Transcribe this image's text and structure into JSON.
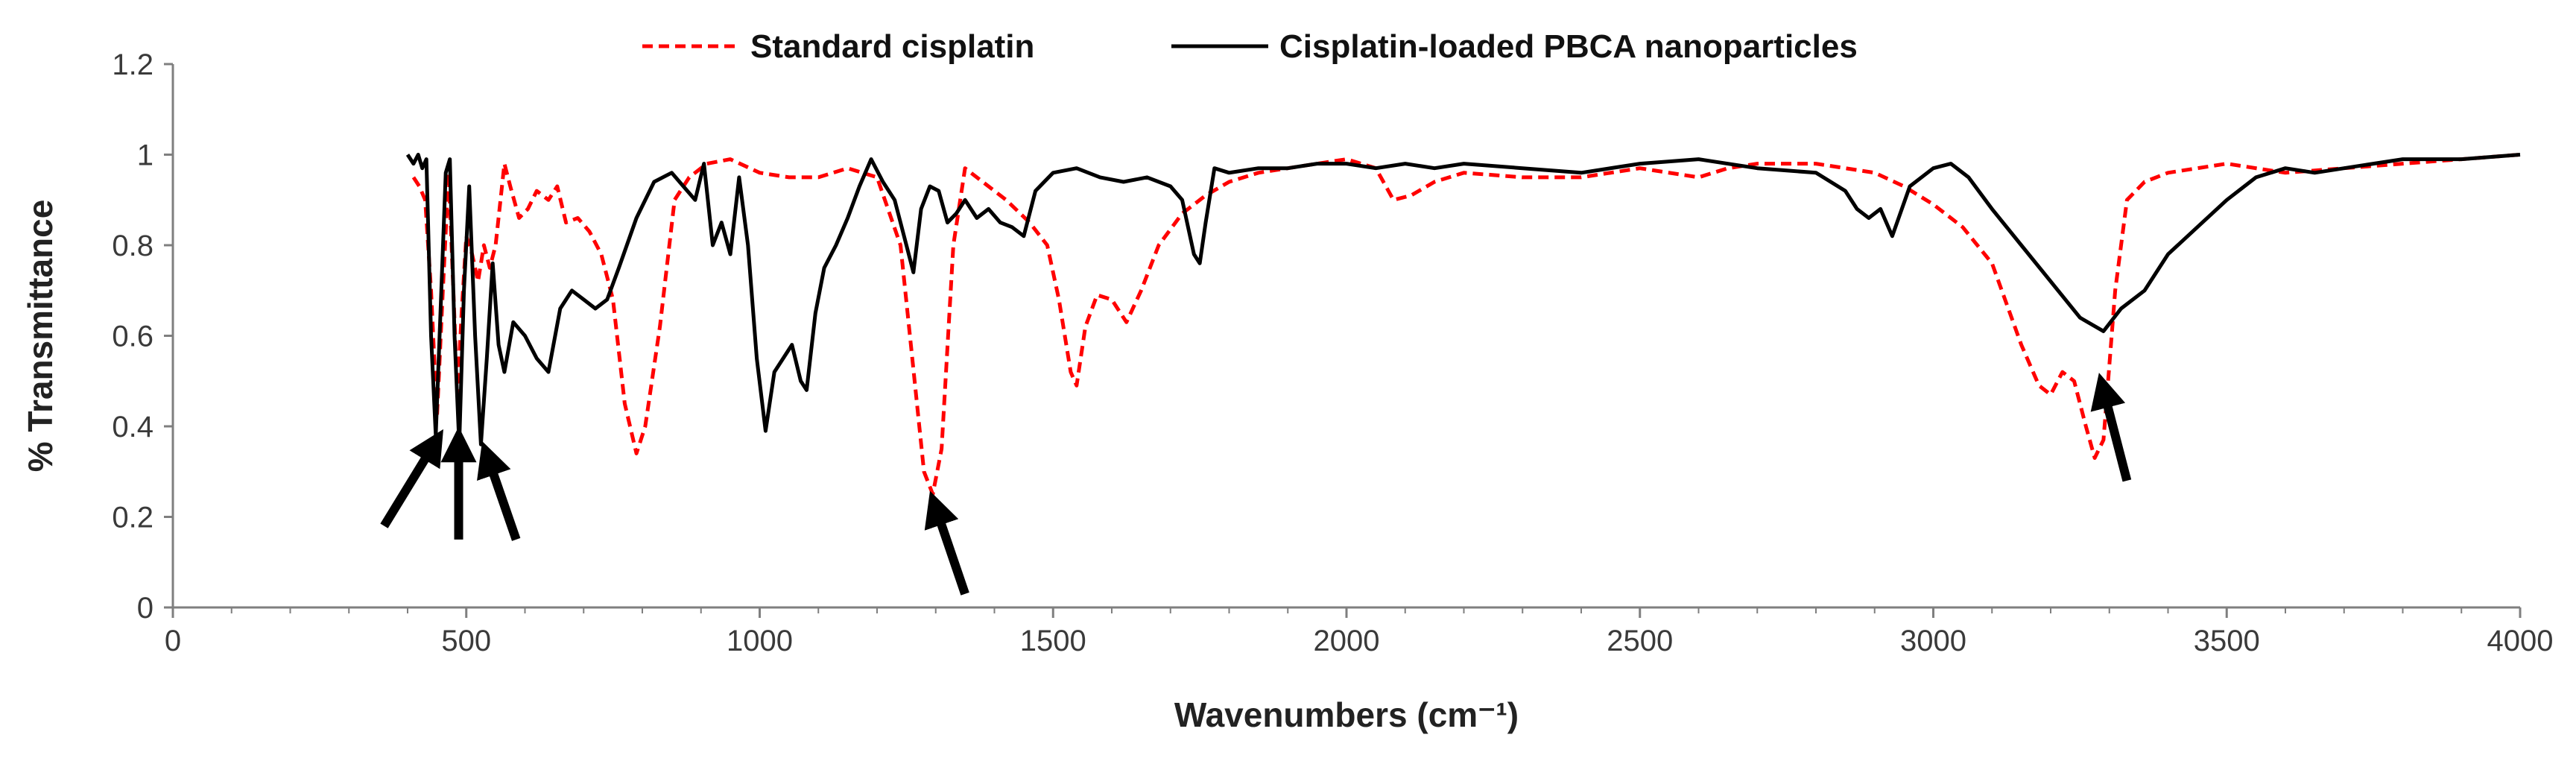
{
  "chart_data": {
    "type": "line",
    "title": "",
    "xlabel": "Wavenumbers (cm⁻¹)",
    "ylabel": "% Transmittance",
    "xlim": [
      0,
      4000
    ],
    "ylim": [
      0,
      1.2
    ],
    "x_ticks": [
      0,
      500,
      1000,
      1500,
      2000,
      2500,
      3000,
      3500,
      4000
    ],
    "x_tick_labels": [
      "0",
      "500",
      "1000",
      "1500",
      "2000",
      "2500",
      "3000",
      "3500",
      "4000"
    ],
    "y_ticks": [
      0,
      0.2,
      0.4,
      0.6,
      0.8,
      1,
      1.2
    ],
    "y_tick_labels": [
      "0",
      "0.2",
      "0.4",
      "0.6",
      "0.8",
      "1",
      "1.2"
    ],
    "x_minor_step": 100,
    "grid": false,
    "legend_position": "top-center",
    "series": [
      {
        "name": "Standard cisplatin",
        "color": "#ff0000",
        "style": "dashed",
        "points": [
          [
            410,
            0.95
          ],
          [
            420,
            0.93
          ],
          [
            430,
            0.9
          ],
          [
            440,
            0.7
          ],
          [
            450,
            0.42
          ],
          [
            460,
            0.7
          ],
          [
            470,
            0.96
          ],
          [
            478,
            0.7
          ],
          [
            485,
            0.47
          ],
          [
            492,
            0.65
          ],
          [
            500,
            0.82
          ],
          [
            510,
            0.78
          ],
          [
            520,
            0.72
          ],
          [
            530,
            0.8
          ],
          [
            540,
            0.75
          ],
          [
            550,
            0.8
          ],
          [
            560,
            0.92
          ],
          [
            565,
            0.98
          ],
          [
            575,
            0.93
          ],
          [
            590,
            0.86
          ],
          [
            605,
            0.88
          ],
          [
            620,
            0.92
          ],
          [
            640,
            0.9
          ],
          [
            655,
            0.93
          ],
          [
            670,
            0.85
          ],
          [
            690,
            0.86
          ],
          [
            710,
            0.83
          ],
          [
            730,
            0.78
          ],
          [
            750,
            0.68
          ],
          [
            770,
            0.45
          ],
          [
            790,
            0.34
          ],
          [
            805,
            0.4
          ],
          [
            830,
            0.62
          ],
          [
            855,
            0.9
          ],
          [
            880,
            0.95
          ],
          [
            910,
            0.98
          ],
          [
            950,
            0.99
          ],
          [
            1000,
            0.96
          ],
          [
            1050,
            0.95
          ],
          [
            1100,
            0.95
          ],
          [
            1150,
            0.97
          ],
          [
            1200,
            0.95
          ],
          [
            1240,
            0.8
          ],
          [
            1260,
            0.55
          ],
          [
            1280,
            0.3
          ],
          [
            1295,
            0.25
          ],
          [
            1310,
            0.35
          ],
          [
            1330,
            0.8
          ],
          [
            1350,
            0.97
          ],
          [
            1380,
            0.94
          ],
          [
            1420,
            0.9
          ],
          [
            1460,
            0.85
          ],
          [
            1490,
            0.8
          ],
          [
            1510,
            0.68
          ],
          [
            1530,
            0.52
          ],
          [
            1540,
            0.49
          ],
          [
            1555,
            0.62
          ],
          [
            1575,
            0.69
          ],
          [
            1600,
            0.68
          ],
          [
            1625,
            0.63
          ],
          [
            1650,
            0.7
          ],
          [
            1680,
            0.8
          ],
          [
            1720,
            0.87
          ],
          [
            1760,
            0.91
          ],
          [
            1800,
            0.94
          ],
          [
            1850,
            0.96
          ],
          [
            1900,
            0.97
          ],
          [
            1950,
            0.98
          ],
          [
            2000,
            0.99
          ],
          [
            2050,
            0.97
          ],
          [
            2080,
            0.9
          ],
          [
            2110,
            0.91
          ],
          [
            2150,
            0.94
          ],
          [
            2200,
            0.96
          ],
          [
            2300,
            0.95
          ],
          [
            2400,
            0.95
          ],
          [
            2500,
            0.97
          ],
          [
            2600,
            0.95
          ],
          [
            2650,
            0.97
          ],
          [
            2700,
            0.98
          ],
          [
            2800,
            0.98
          ],
          [
            2900,
            0.96
          ],
          [
            2950,
            0.93
          ],
          [
            3000,
            0.89
          ],
          [
            3050,
            0.84
          ],
          [
            3100,
            0.76
          ],
          [
            3150,
            0.58
          ],
          [
            3180,
            0.49
          ],
          [
            3200,
            0.47
          ],
          [
            3220,
            0.52
          ],
          [
            3240,
            0.5
          ],
          [
            3260,
            0.4
          ],
          [
            3275,
            0.33
          ],
          [
            3290,
            0.37
          ],
          [
            3310,
            0.7
          ],
          [
            3330,
            0.9
          ],
          [
            3360,
            0.94
          ],
          [
            3400,
            0.96
          ],
          [
            3450,
            0.97
          ],
          [
            3500,
            0.98
          ],
          [
            3600,
            0.96
          ],
          [
            3700,
            0.97
          ],
          [
            3800,
            0.98
          ],
          [
            3900,
            0.99
          ],
          [
            4000,
            1.0
          ]
        ]
      },
      {
        "name": "Cisplatin-loaded PBCA nanoparticles",
        "color": "#000000",
        "style": "solid",
        "points": [
          [
            400,
            1.0
          ],
          [
            410,
            0.98
          ],
          [
            418,
            1.0
          ],
          [
            425,
            0.97
          ],
          [
            432,
            0.99
          ],
          [
            440,
            0.6
          ],
          [
            448,
            0.38
          ],
          [
            456,
            0.65
          ],
          [
            465,
            0.96
          ],
          [
            472,
            0.99
          ],
          [
            480,
            0.6
          ],
          [
            488,
            0.36
          ],
          [
            496,
            0.7
          ],
          [
            505,
            0.93
          ],
          [
            515,
            0.6
          ],
          [
            525,
            0.36
          ],
          [
            535,
            0.55
          ],
          [
            545,
            0.76
          ],
          [
            555,
            0.58
          ],
          [
            565,
            0.52
          ],
          [
            580,
            0.63
          ],
          [
            600,
            0.6
          ],
          [
            620,
            0.55
          ],
          [
            640,
            0.52
          ],
          [
            660,
            0.66
          ],
          [
            680,
            0.7
          ],
          [
            700,
            0.68
          ],
          [
            720,
            0.66
          ],
          [
            740,
            0.68
          ],
          [
            760,
            0.75
          ],
          [
            790,
            0.86
          ],
          [
            820,
            0.94
          ],
          [
            850,
            0.96
          ],
          [
            870,
            0.93
          ],
          [
            890,
            0.9
          ],
          [
            905,
            0.98
          ],
          [
            920,
            0.8
          ],
          [
            935,
            0.85
          ],
          [
            950,
            0.78
          ],
          [
            965,
            0.95
          ],
          [
            980,
            0.8
          ],
          [
            995,
            0.55
          ],
          [
            1010,
            0.39
          ],
          [
            1025,
            0.52
          ],
          [
            1040,
            0.55
          ],
          [
            1055,
            0.58
          ],
          [
            1070,
            0.5
          ],
          [
            1080,
            0.48
          ],
          [
            1095,
            0.65
          ],
          [
            1110,
            0.75
          ],
          [
            1130,
            0.8
          ],
          [
            1150,
            0.86
          ],
          [
            1170,
            0.93
          ],
          [
            1190,
            0.99
          ],
          [
            1210,
            0.94
          ],
          [
            1230,
            0.9
          ],
          [
            1250,
            0.8
          ],
          [
            1262,
            0.74
          ],
          [
            1275,
            0.88
          ],
          [
            1290,
            0.93
          ],
          [
            1305,
            0.92
          ],
          [
            1320,
            0.85
          ],
          [
            1335,
            0.87
          ],
          [
            1350,
            0.9
          ],
          [
            1370,
            0.86
          ],
          [
            1390,
            0.88
          ],
          [
            1410,
            0.85
          ],
          [
            1430,
            0.84
          ],
          [
            1450,
            0.82
          ],
          [
            1470,
            0.92
          ],
          [
            1500,
            0.96
          ],
          [
            1540,
            0.97
          ],
          [
            1580,
            0.95
          ],
          [
            1620,
            0.94
          ],
          [
            1660,
            0.95
          ],
          [
            1700,
            0.93
          ],
          [
            1720,
            0.9
          ],
          [
            1740,
            0.78
          ],
          [
            1750,
            0.76
          ],
          [
            1760,
            0.85
          ],
          [
            1775,
            0.97
          ],
          [
            1800,
            0.96
          ],
          [
            1850,
            0.97
          ],
          [
            1900,
            0.97
          ],
          [
            1950,
            0.98
          ],
          [
            2000,
            0.98
          ],
          [
            2050,
            0.97
          ],
          [
            2100,
            0.98
          ],
          [
            2150,
            0.97
          ],
          [
            2200,
            0.98
          ],
          [
            2300,
            0.97
          ],
          [
            2400,
            0.96
          ],
          [
            2500,
            0.98
          ],
          [
            2600,
            0.99
          ],
          [
            2700,
            0.97
          ],
          [
            2800,
            0.96
          ],
          [
            2850,
            0.92
          ],
          [
            2870,
            0.88
          ],
          [
            2890,
            0.86
          ],
          [
            2910,
            0.88
          ],
          [
            2930,
            0.82
          ],
          [
            2960,
            0.93
          ],
          [
            3000,
            0.97
          ],
          [
            3030,
            0.98
          ],
          [
            3060,
            0.95
          ],
          [
            3100,
            0.88
          ],
          [
            3150,
            0.8
          ],
          [
            3200,
            0.72
          ],
          [
            3250,
            0.64
          ],
          [
            3290,
            0.61
          ],
          [
            3320,
            0.66
          ],
          [
            3360,
            0.7
          ],
          [
            3400,
            0.78
          ],
          [
            3450,
            0.84
          ],
          [
            3500,
            0.9
          ],
          [
            3550,
            0.95
          ],
          [
            3600,
            0.97
          ],
          [
            3650,
            0.96
          ],
          [
            3700,
            0.97
          ],
          [
            3750,
            0.98
          ],
          [
            3800,
            0.99
          ],
          [
            3900,
            0.99
          ],
          [
            4000,
            1.0
          ]
        ]
      }
    ],
    "annotations": [
      {
        "type": "arrow",
        "from": [
          360,
          0.18
        ],
        "to": [
          445,
          0.36
        ]
      },
      {
        "type": "arrow",
        "from": [
          487,
          0.15
        ],
        "to": [
          487,
          0.36
        ]
      },
      {
        "type": "arrow",
        "from": [
          585,
          0.15
        ],
        "to": [
          537,
          0.33
        ]
      },
      {
        "type": "arrow",
        "from": [
          1350,
          0.03
        ],
        "to": [
          1300,
          0.22
        ]
      },
      {
        "type": "arrow",
        "from": [
          3330,
          0.28
        ],
        "to": [
          3290,
          0.48
        ]
      }
    ]
  }
}
